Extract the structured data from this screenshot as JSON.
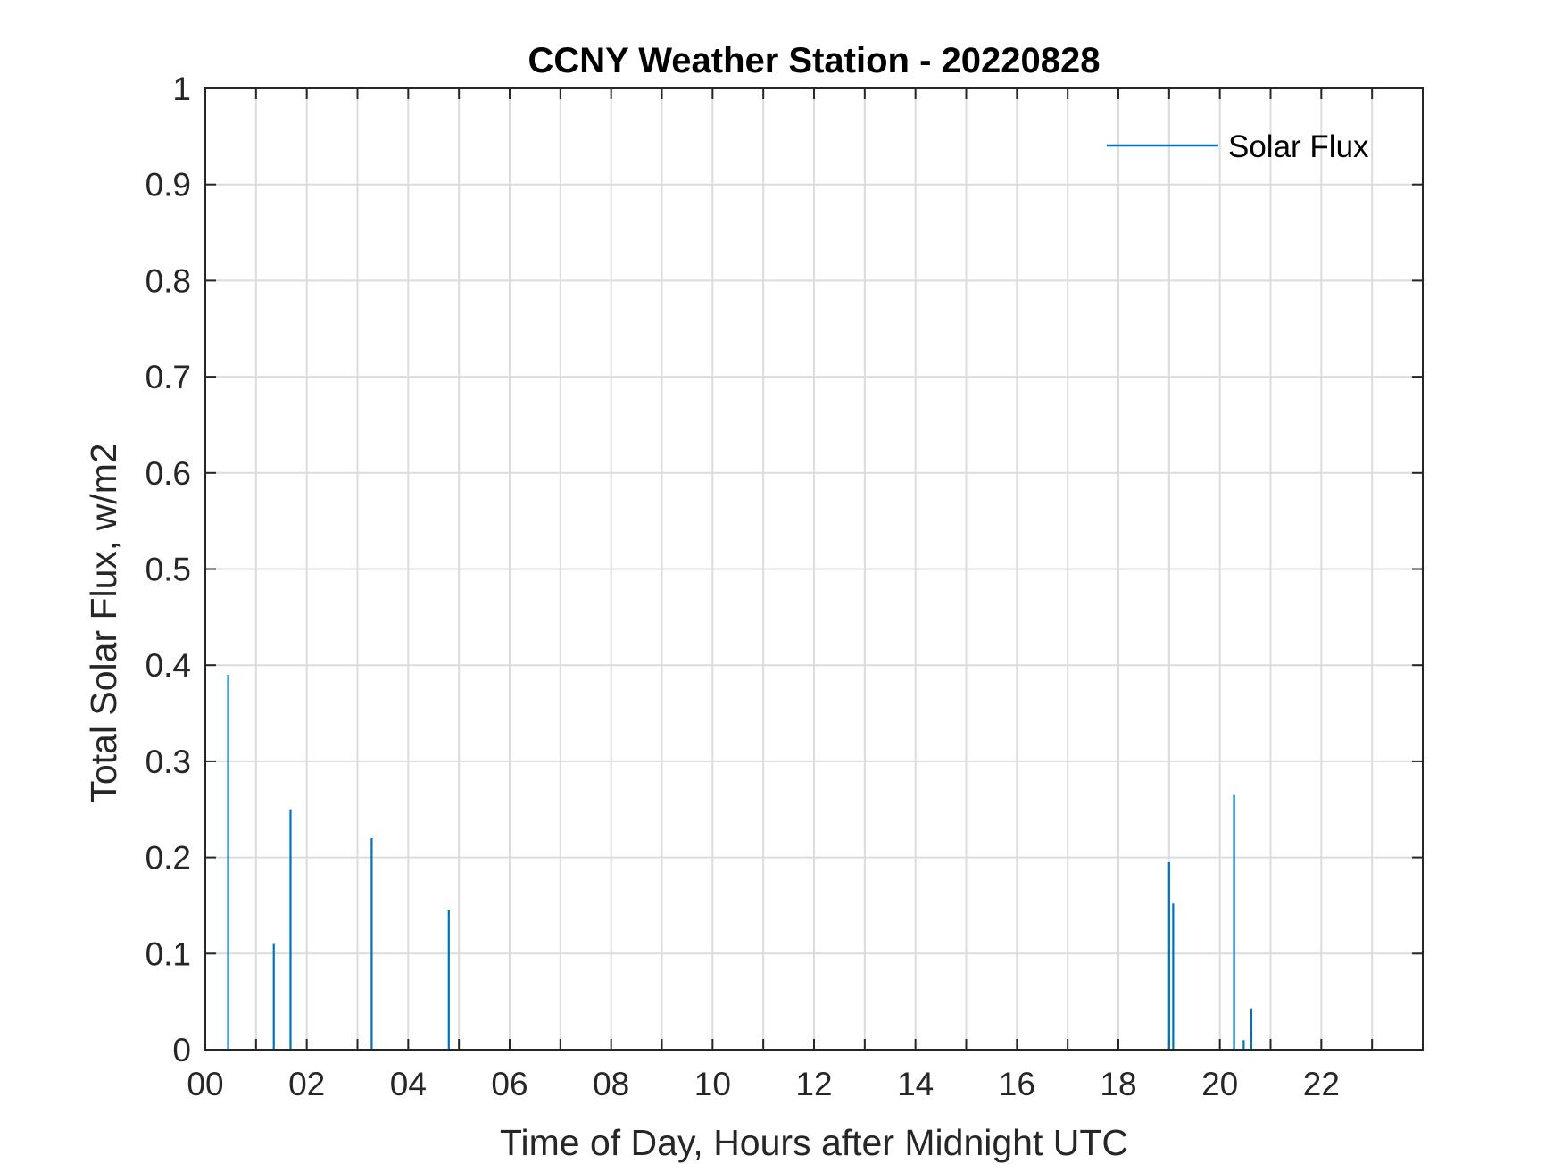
{
  "chart_data": {
    "type": "line",
    "title": "CCNY Weather Station - 20220828",
    "xlabel": "Time of Day, Hours after Midnight UTC",
    "ylabel": "Total Solar Flux, w/m2",
    "xlim": [
      0,
      24
    ],
    "ylim": [
      0,
      1
    ],
    "x_ticks": [
      0,
      2,
      4,
      6,
      8,
      10,
      12,
      14,
      16,
      18,
      20,
      22
    ],
    "x_tick_labels": [
      "00",
      "02",
      "04",
      "06",
      "08",
      "10",
      "12",
      "14",
      "16",
      "18",
      "20",
      "22"
    ],
    "x_minor_grid_step": 1,
    "y_ticks": [
      0,
      0.1,
      0.2,
      0.3,
      0.4,
      0.5,
      0.6,
      0.7,
      0.8,
      0.9,
      1
    ],
    "y_tick_labels": [
      "0",
      "0.1",
      "0.2",
      "0.3",
      "0.4",
      "0.5",
      "0.6",
      "0.7",
      "0.8",
      "0.9",
      "1"
    ],
    "grid": true,
    "legend": {
      "position": "top-right",
      "entries": [
        "Solar Flux"
      ]
    },
    "series": [
      {
        "name": "Solar Flux",
        "color": "#0072BD",
        "spikes": [
          {
            "x": 0.45,
            "y": 0.39
          },
          {
            "x": 1.35,
            "y": 0.11
          },
          {
            "x": 1.68,
            "y": 0.25
          },
          {
            "x": 3.28,
            "y": 0.22
          },
          {
            "x": 4.8,
            "y": 0.145
          },
          {
            "x": 19.0,
            "y": 0.195
          },
          {
            "x": 19.08,
            "y": 0.152
          },
          {
            "x": 20.28,
            "y": 0.265
          },
          {
            "x": 20.47,
            "y": 0.01
          },
          {
            "x": 20.62,
            "y": 0.043
          }
        ]
      }
    ]
  }
}
